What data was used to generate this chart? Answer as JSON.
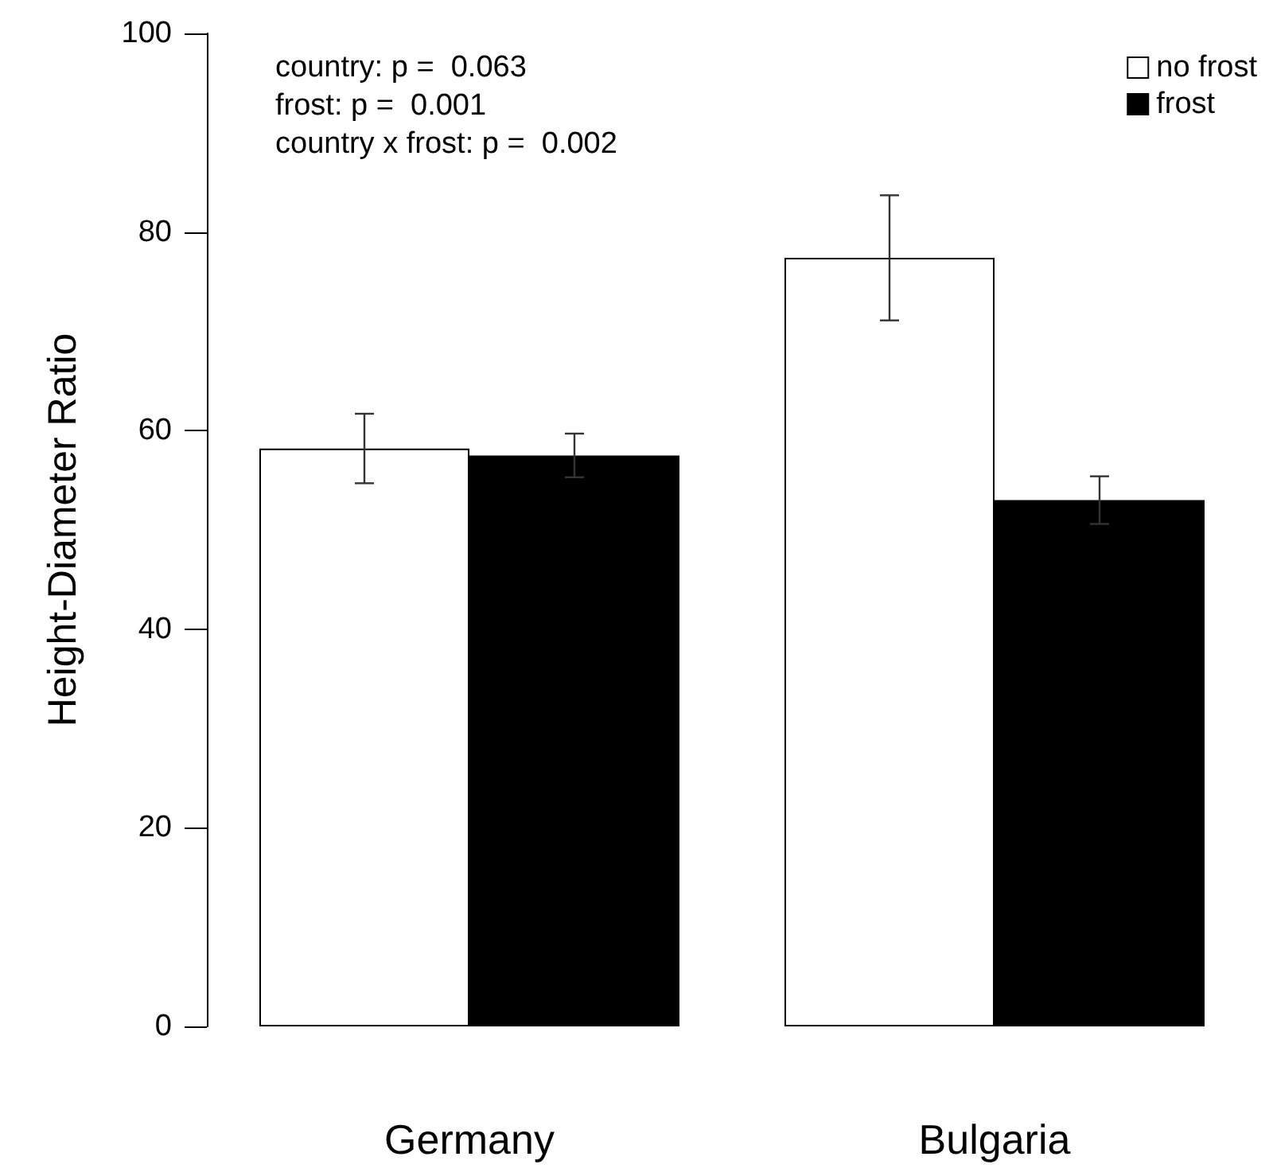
{
  "chart_data": {
    "type": "bar",
    "ylabel": "Height-Diameter Ratio",
    "categories": [
      "Germany",
      "Bulgaria"
    ],
    "series": [
      {
        "name": "no frost",
        "color": "#ffffff",
        "values": [
          58.2,
          77.4
        ],
        "errors": [
          3.5,
          6.3
        ]
      },
      {
        "name": "frost",
        "color": "#000000",
        "values": [
          57.5,
          53.0
        ],
        "errors": [
          2.2,
          2.4
        ]
      }
    ],
    "ylim": [
      0,
      100
    ],
    "yticks": [
      0,
      20,
      40,
      60,
      80,
      100
    ],
    "grid": false,
    "legend": "top right",
    "annotations": [
      "country: p =  0.063",
      "frost: p =  0.001",
      "country x frost: p =  0.002"
    ]
  }
}
